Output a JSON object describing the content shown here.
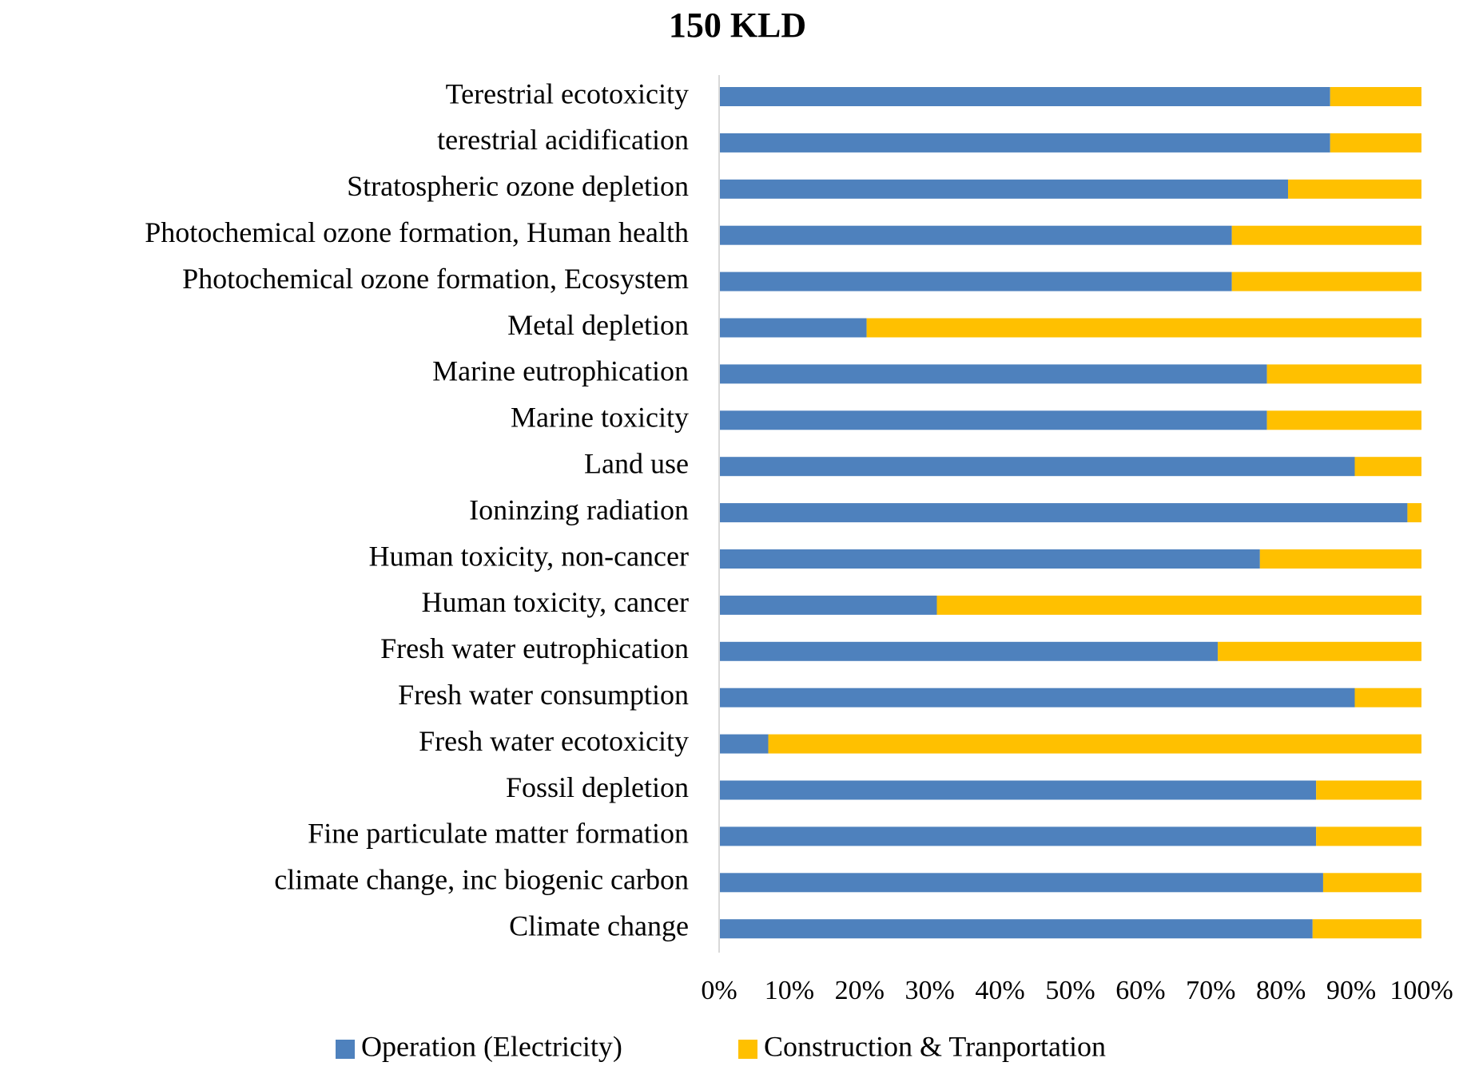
{
  "chart_data": {
    "type": "stacked-bar-horizontal",
    "title": "150 KLD",
    "categories": [
      "Terestrial ecotoxicity",
      "terestrial acidification",
      "Stratospheric ozone depletion",
      "Photochemical ozone formation, Human health",
      "Photochemical ozone formation, Ecosystem",
      "Metal depletion",
      "Marine eutrophication",
      "Marine toxicity",
      "Land use",
      "Ioninzing radiation",
      "Human toxicity, non-cancer",
      "Human toxicity, cancer",
      "Fresh water eutrophication",
      "Fresh water consumption",
      "Fresh water ecotoxicity",
      "Fossil depletion",
      "Fine particulate matter formation",
      "climate change, inc biogenic carbon",
      "Climate change"
    ],
    "series": [
      {
        "name": "Operation (Electricity)",
        "color": "#4e81bd",
        "values": [
          87,
          87,
          81,
          73,
          73,
          21,
          78,
          78,
          90.5,
          98,
          77,
          31,
          71,
          90.5,
          7,
          85,
          85,
          86,
          84.5
        ]
      },
      {
        "name": "Construction & Tranportation",
        "color": "#ffc000",
        "values": [
          13,
          13,
          19,
          27,
          27,
          79,
          22,
          22,
          9.5,
          2,
          23,
          69,
          29,
          9.5,
          93,
          15,
          15,
          14,
          15.5
        ]
      }
    ],
    "xlim": [
      0,
      100
    ],
    "xticks": [
      {
        "value": 0,
        "label": "0%"
      },
      {
        "value": 10,
        "label": "10%"
      },
      {
        "value": 20,
        "label": "20%"
      },
      {
        "value": 30,
        "label": "30%"
      },
      {
        "value": 40,
        "label": "40%"
      },
      {
        "value": 50,
        "label": "50%"
      },
      {
        "value": 60,
        "label": "60%"
      },
      {
        "value": 70,
        "label": "70%"
      },
      {
        "value": 80,
        "label": "80%"
      },
      {
        "value": 90,
        "label": "90%"
      },
      {
        "value": 100,
        "label": "100%"
      }
    ],
    "legend": "bottom"
  }
}
